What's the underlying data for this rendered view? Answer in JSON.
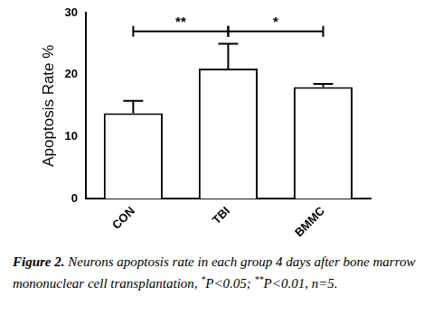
{
  "chart_data": {
    "type": "bar",
    "y_label": "Apoptosis Rate %",
    "categories": [
      "CON",
      "TBI",
      "BMMC"
    ],
    "values": [
      13.8,
      21,
      18
    ],
    "errors": [
      2,
      4,
      0.5
    ],
    "color": "#ffffff",
    "ylim": [
      0,
      30
    ],
    "yticks": [
      0,
      10,
      20,
      30
    ],
    "grid": false,
    "annotations": [
      {
        "text": "**",
        "from": "CON",
        "to": "TBI",
        "y": 27
      },
      {
        "text": "*",
        "from": "TBI",
        "to": "BMMC",
        "y": 27
      }
    ],
    "caption": {
      "label": "Figure 2.",
      "text": "Neurons apoptosis rate in each group 4 days after bone marrow mononuclear cell transplantation, *P<0.05; **P<0.01, n=5."
    }
  }
}
